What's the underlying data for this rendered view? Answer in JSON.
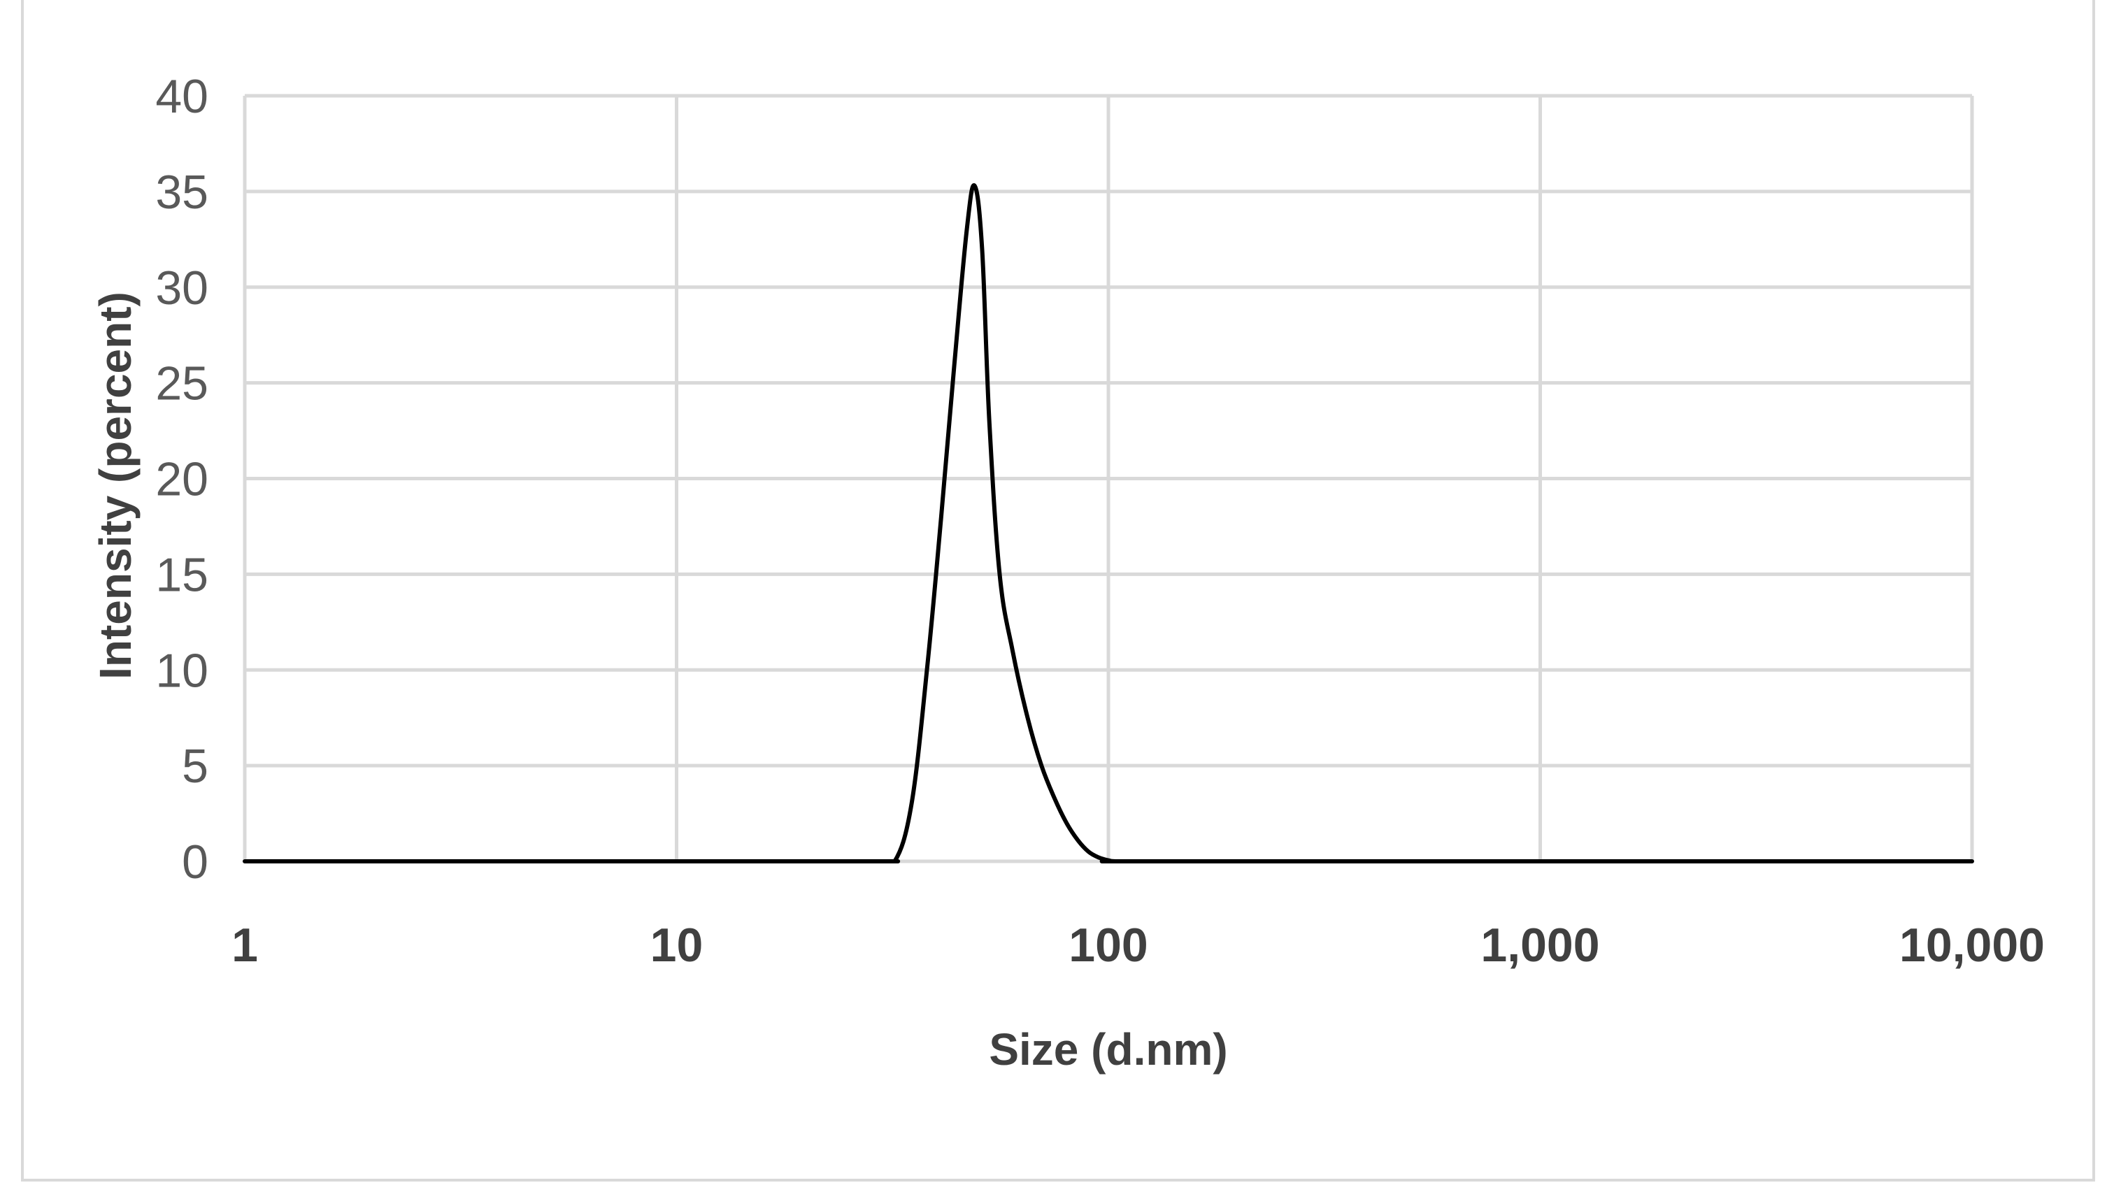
{
  "chart_data": {
    "type": "line",
    "xlabel": "Size (d.nm)",
    "ylabel": "Intensity (percent)",
    "xscale": "log",
    "xlim": [
      1,
      10000
    ],
    "ylim": [
      0,
      40
    ],
    "grid": true,
    "legend": "none",
    "line_color": "#000000",
    "grid_color": "#d9d9d9",
    "y_ticks": [
      {
        "value": 0,
        "label": "0"
      },
      {
        "value": 5,
        "label": "5"
      },
      {
        "value": 10,
        "label": "10"
      },
      {
        "value": 15,
        "label": "15"
      },
      {
        "value": 20,
        "label": "20"
      },
      {
        "value": 25,
        "label": "25"
      },
      {
        "value": 30,
        "label": "30"
      },
      {
        "value": 35,
        "label": "35"
      },
      {
        "value": 40,
        "label": "40"
      }
    ],
    "x_ticks": [
      {
        "value": 1,
        "label": "1"
      },
      {
        "value": 10,
        "label": "10"
      },
      {
        "value": 100,
        "label": "100"
      },
      {
        "value": 1000,
        "label": "1,000"
      },
      {
        "value": 10000,
        "label": "10,000"
      }
    ],
    "series": [
      {
        "x": [
          1,
          10,
          29,
          32,
          35,
          38,
          41,
          44,
          47,
          49,
          51,
          53,
          56,
          60,
          65,
          70,
          75,
          80,
          85,
          90,
          95,
          100,
          104,
          120,
          1000,
          10000
        ],
        "y": [
          0,
          0,
          0,
          0,
          3,
          10,
          18,
          26,
          33,
          35.3,
          32,
          23,
          15,
          11,
          7.5,
          5,
          3.3,
          2,
          1.1,
          0.5,
          0.2,
          0.05,
          0,
          0,
          0,
          0
        ]
      }
    ]
  }
}
